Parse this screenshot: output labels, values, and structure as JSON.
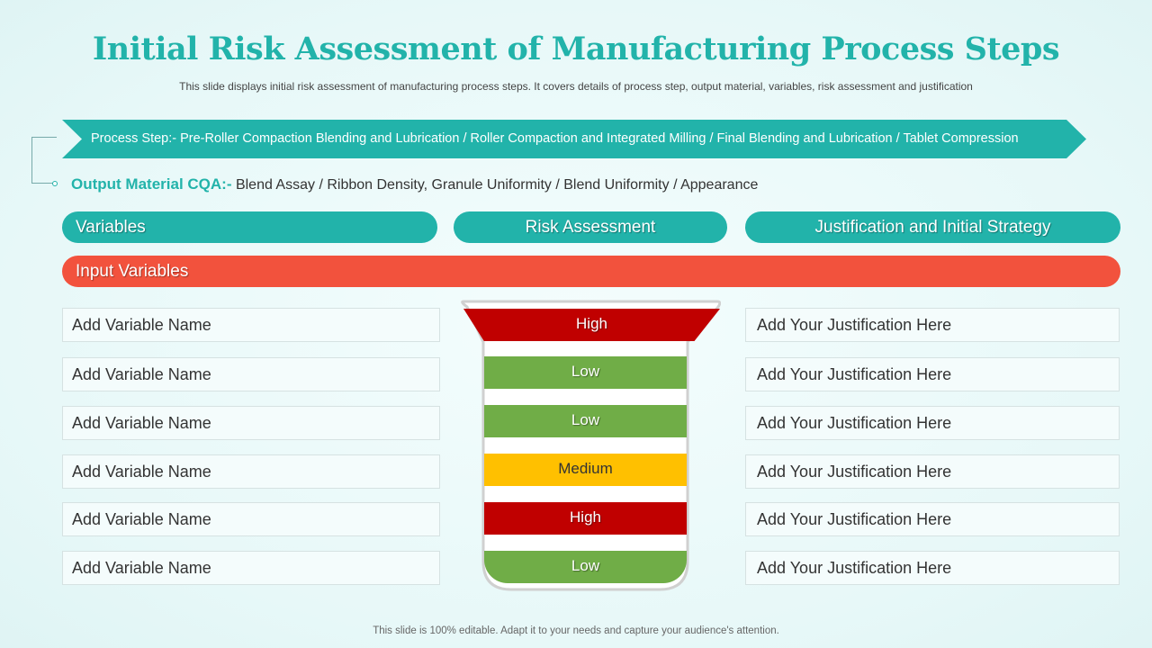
{
  "title": "Initial Risk Assessment of Manufacturing Process Steps",
  "subtitle": "This slide displays initial risk assessment of manufacturing  process steps. It covers details of process step, output material, variables,  risk assessment and justification",
  "process_step": "Process Step:- Pre-Roller Compaction Blending and Lubrication / Roller Compaction and Integrated Milling  / Final Blending and Lubrication  / Tablet Compression",
  "output_material": {
    "label": "Output Material CQA:-",
    "value": " Blend Assay / Ribbon Density, Granule Uniformity  / Blend Uniformity  / Appearance"
  },
  "headers": {
    "variables": "Variables",
    "risk": "Risk Assessment",
    "justification": "Justification and Initial Strategy"
  },
  "input_variables": "Input Variables",
  "rows": [
    {
      "variable": "Add Variable Name",
      "risk": "High",
      "justification": "Add Your Justification Here"
    },
    {
      "variable": "Add Variable Name",
      "risk": "Low",
      "justification": "Add Your Justification Here"
    },
    {
      "variable": "Add Variable Name",
      "risk": "Low",
      "justification": "Add Your Justification Here"
    },
    {
      "variable": "Add Variable Name",
      "risk": "Medium",
      "justification": "Add Your Justification Here"
    },
    {
      "variable": "Add Variable Name",
      "risk": "High",
      "justification": "Add Your Justification Here"
    },
    {
      "variable": "Add Variable Name",
      "risk": "Low",
      "justification": "Add Your Justification Here"
    }
  ],
  "colors": {
    "teal": "#22b3aa",
    "input_bar": "#f2523d",
    "High": "#c00000",
    "Low": "#70ad47",
    "Medium": "#ffc000"
  },
  "footer": "This slide is 100% editable. Adapt it to your needs and capture your audience's attention."
}
